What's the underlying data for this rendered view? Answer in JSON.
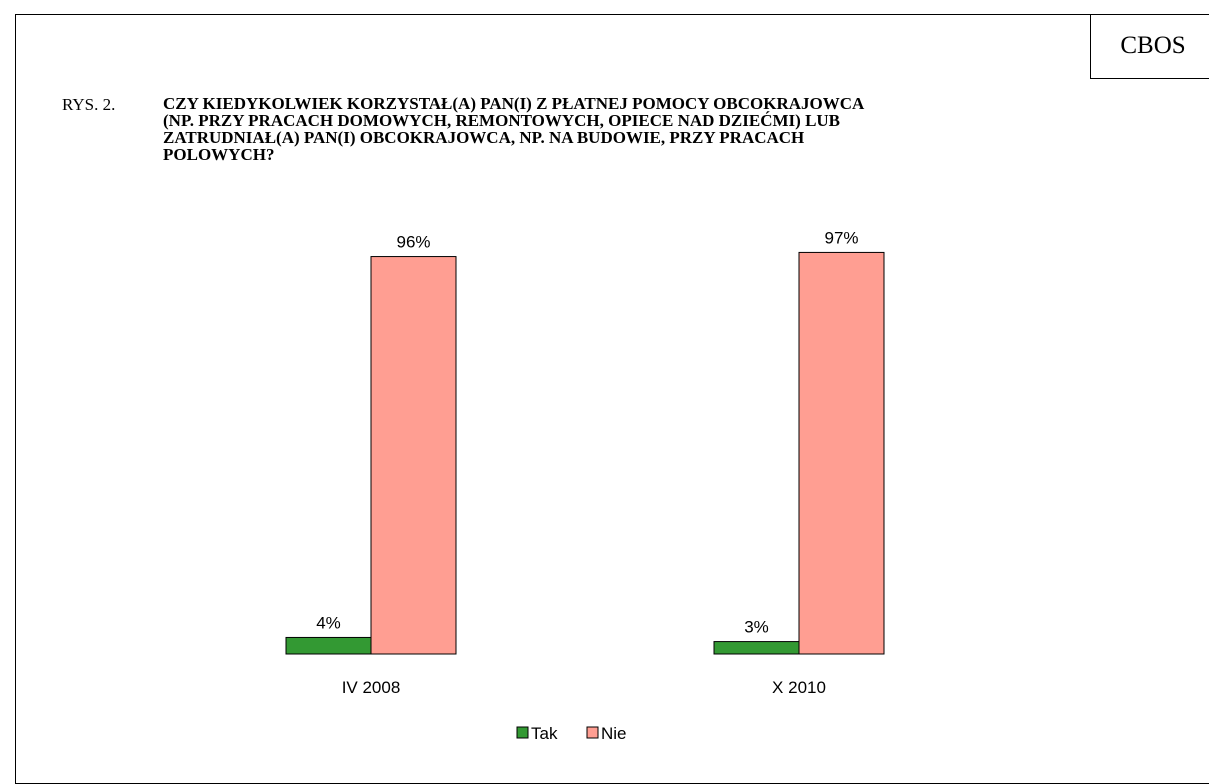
{
  "source": "CBOS",
  "figure_label": "RYS. 2.",
  "title_lines": [
    "CZY KIEDYKOLWIEK KORZYSTAŁ(A) PAN(I) Z PŁATNEJ POMOCY OBCOKRAJOWCA",
    "(NP. PRZY PRACACH DOMOWYCH, REMONTOWYCH, OPIECE NAD DZIEĆMI) LUB",
    "ZATRUDNIAŁ(A) PAN(I) OBCOKRAJOWCA, NP. NA BUDOWIE, PRZY PRACACH",
    "POLOWYCH?"
  ],
  "colors": {
    "tak": "#339933",
    "nie": "#FF9E92",
    "outline": "#000000"
  },
  "chart_data": {
    "type": "bar",
    "title": "CZY KIEDYKOLWIEK KORZYSTAŁ(A) PAN(I) Z PŁATNEJ POMOCY OBCOKRAJOWCA (NP. PRZY PRACACH DOMOWYCH, REMONTOWYCH, OPIECE NAD DZIEĆMI) LUB ZATRUDNIAŁ(A) PAN(I) OBCOKRAJOWCA, NP. NA BUDOWIE, PRZY PRACACH POLOWYCH?",
    "categories": [
      "IV 2008",
      "X 2010"
    ],
    "series": [
      {
        "name": "Tak",
        "values": [
          4,
          3
        ],
        "labels": [
          "4%",
          "3%"
        ]
      },
      {
        "name": "Nie",
        "values": [
          96,
          97
        ],
        "labels": [
          "96%",
          "97%"
        ]
      }
    ],
    "unit": "%",
    "ylim": [
      0,
      100
    ],
    "grid": false,
    "legend_position": "bottom"
  }
}
